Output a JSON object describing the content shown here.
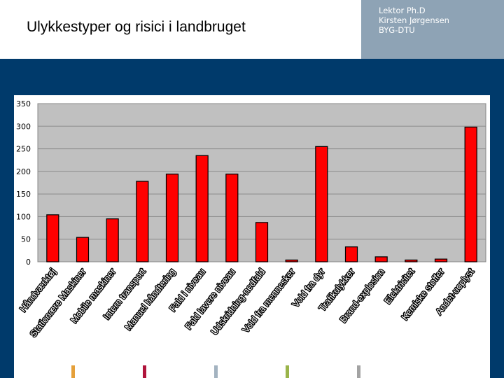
{
  "header": {
    "title": "Ulykkestyper og risici i landbruget",
    "author_lines": [
      "Lektor Ph.D",
      "Kirsten Jørgensen",
      "BYG-DTU"
    ]
  },
  "colors": {
    "background": "#003a6b",
    "plot_area": "#c0c0c0",
    "bar": "#ff0000",
    "footer_marks": [
      "#e5a03a",
      "#b0143c",
      "#a3b3c0",
      "#9ab44a",
      "#a3a3a3",
      "#ffffff"
    ]
  },
  "chart_data": {
    "type": "bar",
    "title": "",
    "xlabel": "",
    "ylabel": "",
    "ylim": [
      0,
      350
    ],
    "yticks": [
      0,
      50,
      100,
      150,
      200,
      250,
      300,
      350
    ],
    "grid": true,
    "categories": [
      "Håndværktøj",
      "Stationære Maskiner",
      "Mobile maskiner",
      "Intern transport",
      "Manuel håndtering",
      "Fald i niveau",
      "Fald lavere niveau",
      "Udskridning-nedfald",
      "Vold fra mennesker",
      "Vold fra dyr",
      "Trafikulykker",
      "Brand-explosion",
      "Elektricitet",
      "Kemiske stoffer",
      "Andet-uoplyst"
    ],
    "values": [
      104,
      54,
      95,
      178,
      194,
      235,
      194,
      87,
      4,
      255,
      33,
      11,
      4,
      6,
      298
    ]
  }
}
